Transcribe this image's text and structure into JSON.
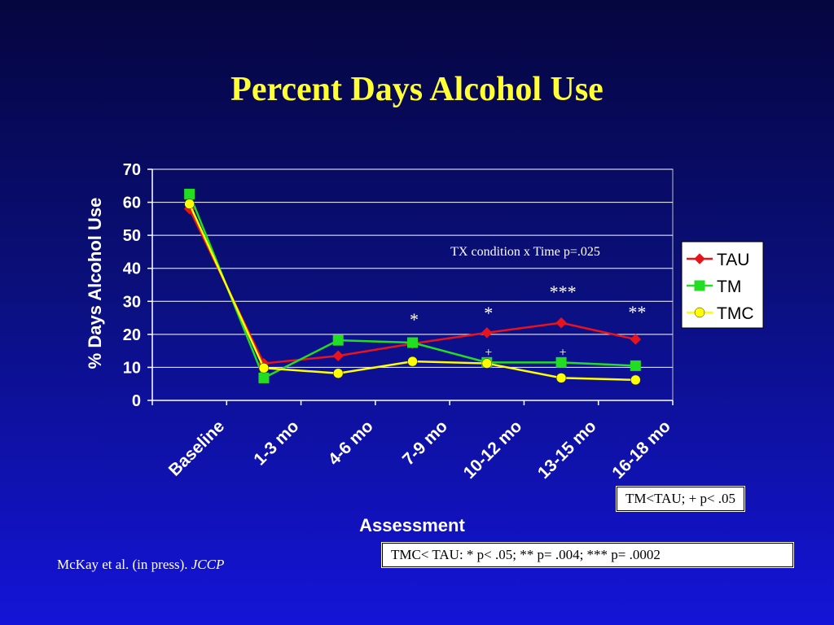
{
  "slide": {
    "title": "Percent Days Alcohol Use",
    "citation_text": "McKay et al. (in press).",
    "citation_journal": "JCCP",
    "note1": "TM<TAU; + p< .05",
    "note2": "TMC< TAU: * p< .05;  ** p= .004; *** p= .0002"
  },
  "colors": {
    "TAU": "#e8141c",
    "TM": "#22dd22",
    "TMC": "#ffff00",
    "title": "#ffff33"
  },
  "chart_data": {
    "type": "line",
    "title": "",
    "xlabel": "Assessment",
    "ylabel": "% Days Alcohol Use",
    "ylim": [
      0,
      70
    ],
    "yticks": [
      0,
      10,
      20,
      30,
      40,
      50,
      60,
      70
    ],
    "grid": true,
    "legend_position": "right",
    "categories": [
      "Baseline",
      "1-3 mo",
      "4-6 mo",
      "7-9 mo",
      "10-12 mo",
      "13-15 mo",
      "16-18 mo"
    ],
    "series": [
      {
        "name": "TAU",
        "marker": "diamond",
        "values": [
          58,
          11.2,
          13.5,
          17.2,
          20.5,
          23.5,
          18.5
        ]
      },
      {
        "name": "TM",
        "marker": "square",
        "values": [
          62.5,
          6.8,
          18.2,
          17.5,
          11.5,
          11.5,
          10.5
        ]
      },
      {
        "name": "TMC",
        "marker": "circle",
        "values": [
          59.5,
          9.8,
          8.2,
          11.8,
          11.2,
          6.8,
          6.2
        ]
      }
    ],
    "annotations": [
      {
        "text": "TX condition x Time p=.025"
      },
      {
        "text": "*",
        "category": "7-9 mo"
      },
      {
        "text": "*",
        "category": "10-12 mo"
      },
      {
        "text": "***",
        "category": "13-15 mo"
      },
      {
        "text": "**",
        "category": "16-18 mo"
      },
      {
        "text": "+",
        "category": "10-12 mo"
      },
      {
        "text": "+",
        "category": "13-15 mo"
      }
    ]
  }
}
